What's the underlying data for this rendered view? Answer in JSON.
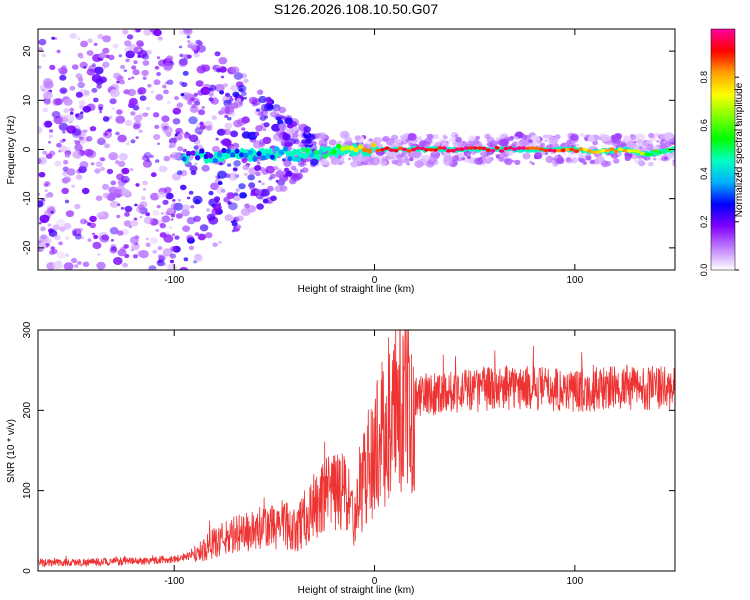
{
  "figure_title": "S126.2026.108.10.50.G07",
  "chart_data": [
    {
      "type": "heatmap",
      "title": "S126.2026.108.10.50.G07",
      "xlabel": "Height of straight line (km)",
      "ylabel": "Frequency (Hz)",
      "xlim": [
        -168,
        150
      ],
      "ylim": [
        -24.5,
        24.5
      ],
      "xticks": [
        -100,
        0,
        100
      ],
      "yticks": [
        -20,
        -10,
        0,
        10,
        20
      ],
      "colorbar": {
        "label": "Normalized spectral amplitude",
        "range": [
          0,
          1
        ],
        "ticks": [
          0.0,
          0.2,
          0.4,
          0.6,
          0.8
        ],
        "colors": [
          "#ffffff",
          "#c080ff",
          "#8000ff",
          "#0000ff",
          "#00b0ff",
          "#00ffc0",
          "#00ff00",
          "#80ff00",
          "#ffff00",
          "#ffa000",
          "#ff0000",
          "#ff00a0"
        ]
      },
      "ridge": [
        {
          "x": -90,
          "y": -1.5,
          "amp": 0.25
        },
        {
          "x": -70,
          "y": -1.2,
          "amp": 0.3
        },
        {
          "x": -55,
          "y": -1.0,
          "amp": 0.35
        },
        {
          "x": -40,
          "y": -0.8,
          "amp": 0.4
        },
        {
          "x": -30,
          "y": -1.0,
          "amp": 0.45
        },
        {
          "x": -20,
          "y": -0.2,
          "amp": 0.55
        },
        {
          "x": -10,
          "y": 0.0,
          "amp": 0.7
        },
        {
          "x": 0,
          "y": 0.0,
          "amp": 0.85
        },
        {
          "x": 20,
          "y": 0.0,
          "amp": 0.95
        },
        {
          "x": 60,
          "y": 0.0,
          "amp": 0.95
        },
        {
          "x": 90,
          "y": 0.0,
          "amp": 0.9
        },
        {
          "x": 100,
          "y": 0.0,
          "amp": 0.85
        },
        {
          "x": 110,
          "y": -0.5,
          "amp": 0.75
        },
        {
          "x": 125,
          "y": 0.0,
          "amp": 0.8
        },
        {
          "x": 135,
          "y": -1.0,
          "amp": 0.6
        },
        {
          "x": 150,
          "y": 0.0,
          "amp": 0.5
        }
      ]
    },
    {
      "type": "line",
      "xlabel": "Height of straight line (km)",
      "ylabel": "SNR (10 * v/v)",
      "xlim": [
        -168,
        150
      ],
      "ylim": [
        0,
        300
      ],
      "xticks": [
        -100,
        0,
        100
      ],
      "yticks": [
        0,
        100,
        200,
        300
      ],
      "color": "#ee3333",
      "series": [
        {
          "name": "SNR",
          "x": [
            -168,
            -140,
            -120,
            -100,
            -90,
            -80,
            -70,
            -60,
            -50,
            -45,
            -40,
            -30,
            -25,
            -20,
            -15,
            -10,
            -5,
            0,
            5,
            10,
            15,
            20,
            25,
            30,
            40,
            50,
            60,
            80,
            100,
            120,
            140,
            150
          ],
          "values": [
            10,
            11,
            12,
            15,
            20,
            35,
            45,
            50,
            55,
            60,
            50,
            80,
            90,
            95,
            100,
            60,
            120,
            150,
            175,
            190,
            205,
            215,
            220,
            222,
            225,
            225,
            228,
            228,
            225,
            228,
            228,
            225
          ]
        }
      ]
    }
  ]
}
